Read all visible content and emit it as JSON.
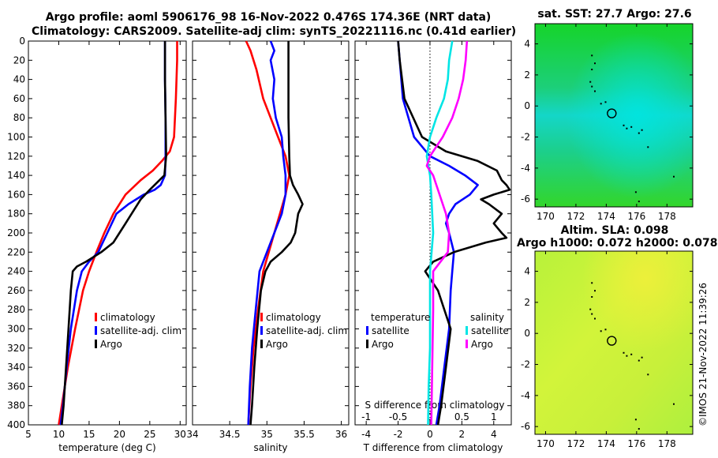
{
  "titles": {
    "line1": "Argo profile: aoml 5906176_98 16-Nov-2022 0.476S 174.36E (NRT data)",
    "line2": "Climatology: CARS2009. Satellite-adj clim: synTS_20221116.nc (0.41d earlier)",
    "sst": "sat. SST: 27.7 Argo: 27.6",
    "sla1": "Altim. SLA: 0.098",
    "sla2": "Argo h1000: 0.072 h2000: 0.078"
  },
  "stamp": "©IMOS 21-Nov-2022 11:39:26",
  "colors": {
    "climatology": "#ff0000",
    "satellite": "#0000ff",
    "argo": "#000000",
    "t_sat": "#0000ff",
    "s_sat": "#00e5e5",
    "s_argo": "#ff00ff"
  },
  "chart_data": [
    {
      "type": "line",
      "panel": "temperature",
      "xlabel": "temperature (deg C)",
      "xlim": [
        5,
        31
      ],
      "ylim": [
        0,
        400
      ],
      "xticks": [
        5,
        10,
        15,
        20,
        25,
        30
      ],
      "yticks": [
        0,
        20,
        40,
        60,
        80,
        100,
        120,
        140,
        160,
        180,
        200,
        220,
        240,
        260,
        280,
        300,
        320,
        340,
        360,
        380,
        400
      ],
      "series": [
        {
          "name": "climatology",
          "color": "#ff0000",
          "y": [
            0,
            20,
            60,
            100,
            115,
            125,
            135,
            145,
            160,
            180,
            200,
            220,
            240,
            260,
            300,
            340,
            380,
            400
          ],
          "x": [
            29.5,
            29.5,
            29.3,
            29.0,
            28.3,
            27.0,
            25.5,
            23.5,
            21.0,
            19.0,
            17.5,
            16.2,
            15.0,
            14.0,
            12.7,
            11.5,
            10.5,
            10.0
          ]
        },
        {
          "name": "satellite-adj. clim",
          "color": "#0000ff",
          "y": [
            0,
            40,
            80,
            120,
            140,
            150,
            155,
            160,
            170,
            180,
            200,
            220,
            230,
            240,
            260,
            300,
            340,
            380,
            400
          ],
          "x": [
            27.5,
            27.5,
            27.6,
            27.6,
            27.5,
            26.8,
            25.8,
            24.0,
            21.5,
            19.5,
            18.0,
            16.5,
            15.0,
            13.8,
            13.0,
            12.0,
            11.3,
            10.7,
            10.3
          ]
        },
        {
          "name": "Argo",
          "color": "#000000",
          "y": [
            0,
            40,
            80,
            120,
            140,
            155,
            165,
            180,
            190,
            200,
            210,
            220,
            230,
            235,
            240,
            260,
            300,
            340,
            380,
            400
          ],
          "x": [
            27.5,
            27.5,
            27.6,
            27.7,
            27.4,
            25.0,
            23.5,
            22.0,
            21.0,
            20.0,
            19.0,
            17.0,
            14.5,
            13.0,
            12.3,
            12.0,
            11.6,
            11.2,
            10.8,
            10.5
          ]
        }
      ],
      "legend": [
        "climatology",
        "satellite-adj. clim",
        "Argo"
      ]
    },
    {
      "type": "line",
      "panel": "salinity",
      "xlabel": "salinity",
      "xlim": [
        34,
        36.1
      ],
      "ylim": [
        0,
        400
      ],
      "xticks": [
        34,
        34.5,
        35,
        35.5,
        36
      ],
      "xticklabels": [
        "34",
        "34.5",
        "35",
        "35.5",
        "36"
      ],
      "series": [
        {
          "name": "climatology",
          "color": "#ff0000",
          "y": [
            0,
            10,
            30,
            60,
            80,
            100,
            120,
            140,
            160,
            200,
            240,
            280,
            320,
            360,
            400
          ],
          "x": [
            34.72,
            34.78,
            34.86,
            34.95,
            35.05,
            35.15,
            35.25,
            35.3,
            35.25,
            35.1,
            34.95,
            34.88,
            34.82,
            34.78,
            34.75
          ]
        },
        {
          "name": "satellite-adj. clim",
          "color": "#0000ff",
          "y": [
            0,
            10,
            20,
            40,
            60,
            80,
            100,
            120,
            140,
            160,
            180,
            200,
            220,
            240,
            280,
            320,
            360,
            400
          ],
          "x": [
            35.05,
            35.1,
            35.05,
            35.1,
            35.08,
            35.12,
            35.2,
            35.22,
            35.25,
            35.25,
            35.2,
            35.1,
            35.0,
            34.9,
            34.85,
            34.8,
            34.77,
            34.75
          ]
        },
        {
          "name": "Argo",
          "color": "#000000",
          "y": [
            0,
            40,
            80,
            120,
            140,
            150,
            160,
            170,
            180,
            200,
            210,
            220,
            230,
            240,
            260,
            300,
            340,
            380,
            400
          ],
          "x": [
            35.29,
            35.29,
            35.29,
            35.3,
            35.31,
            35.35,
            35.42,
            35.48,
            35.42,
            35.38,
            35.32,
            35.2,
            35.05,
            34.98,
            34.92,
            34.87,
            34.83,
            34.8,
            34.78
          ]
        }
      ],
      "legend": [
        "climatology",
        "satellite-adj. clim",
        "Argo"
      ]
    },
    {
      "type": "line",
      "panel": "difference",
      "xlabel": "T difference from climatology",
      "xlabel_top": "S difference from climatology",
      "xlim": [
        -4.7,
        5.1
      ],
      "ylim": [
        0,
        400
      ],
      "xticks": [
        -4,
        -2,
        0,
        2,
        4
      ],
      "xticklabels": [
        "-4",
        "-2",
        "0",
        "2",
        "4"
      ],
      "xlim_top": [
        -1.175,
        1.275
      ],
      "xticks_top": [
        -1,
        -0.5,
        0,
        0.5,
        1
      ],
      "xticklabels_top": [
        "-1",
        "-0.5",
        "0",
        "0.5",
        "1"
      ],
      "series": [
        {
          "name": "temperature satellite",
          "color": "#0000ff",
          "scale": "T",
          "y": [
            0,
            20,
            60,
            100,
            120,
            130,
            140,
            150,
            160,
            170,
            180,
            190,
            200,
            220,
            240,
            260,
            300,
            340,
            380,
            400
          ],
          "x": [
            -2.0,
            -1.9,
            -1.7,
            -1.0,
            0,
            1.2,
            2.2,
            3.0,
            2.5,
            1.6,
            1.2,
            1.0,
            1.2,
            1.5,
            1.4,
            1.3,
            1.2,
            0.9,
            0.6,
            0.4
          ]
        },
        {
          "name": "temperature Argo",
          "color": "#000000",
          "scale": "T",
          "y": [
            0,
            20,
            60,
            100,
            115,
            125,
            135,
            145,
            150,
            155,
            160,
            165,
            170,
            180,
            190,
            200,
            205,
            210,
            220,
            230,
            240,
            260,
            300,
            340,
            380,
            400
          ],
          "x": [
            -2.0,
            -1.9,
            -1.6,
            -0.5,
            1.0,
            3.0,
            4.2,
            4.5,
            4.8,
            5.0,
            4.0,
            3.2,
            3.7,
            4.5,
            4.0,
            4.5,
            4.8,
            3.5,
            1.5,
            0.2,
            -0.3,
            0.5,
            1.3,
            1.0,
            0.7,
            0.5
          ]
        },
        {
          "name": "salinity satellite",
          "color": "#00e5e5",
          "scale": "S",
          "y": [
            0,
            20,
            40,
            60,
            80,
            100,
            120,
            140,
            160,
            200,
            240,
            280,
            320,
            360,
            400
          ],
          "x": [
            0.35,
            0.3,
            0.28,
            0.22,
            0.1,
            0.0,
            -0.05,
            0.0,
            0.02,
            0.05,
            0.0,
            0.0,
            0.0,
            -0.02,
            -0.03
          ]
        },
        {
          "name": "salinity Argo",
          "color": "#ff00ff",
          "scale": "S",
          "y": [
            0,
            20,
            40,
            60,
            80,
            100,
            110,
            120,
            130,
            140,
            160,
            180,
            200,
            220,
            240,
            280,
            320,
            360,
            400
          ],
          "x": [
            0.58,
            0.56,
            0.52,
            0.45,
            0.35,
            0.2,
            0.1,
            0.0,
            -0.05,
            0.05,
            0.15,
            0.25,
            0.3,
            0.28,
            0.05,
            0.05,
            0.04,
            0.03,
            0.02
          ]
        }
      ],
      "legend_left_title": "temperature",
      "legend_right_title": "salinity",
      "legend_left": [
        "satellite",
        "Argo"
      ],
      "legend_right": [
        "satellite",
        "Argo"
      ]
    },
    {
      "type": "heatmap",
      "panel": "sst_map",
      "title": "sat. SST: 27.7 Argo: 27.6",
      "xlim": [
        169.3,
        179.7
      ],
      "ylim": [
        -6.5,
        5.3
      ],
      "xticks": [
        170,
        172,
        174,
        176,
        178
      ],
      "yticks": [
        -6,
        -4,
        -2,
        0,
        2,
        4
      ],
      "float_position": {
        "lon": 174.36,
        "lat": -0.476
      }
    },
    {
      "type": "heatmap",
      "panel": "sla_map",
      "title": "Altim. SLA: 0.098",
      "xlim": [
        169.3,
        179.7
      ],
      "ylim": [
        -6.5,
        5.3
      ],
      "xticks": [
        170,
        172,
        174,
        176,
        178
      ],
      "yticks": [
        -6,
        -4,
        -2,
        0,
        2,
        4
      ],
      "float_position": {
        "lon": 174.36,
        "lat": -0.476
      }
    }
  ]
}
